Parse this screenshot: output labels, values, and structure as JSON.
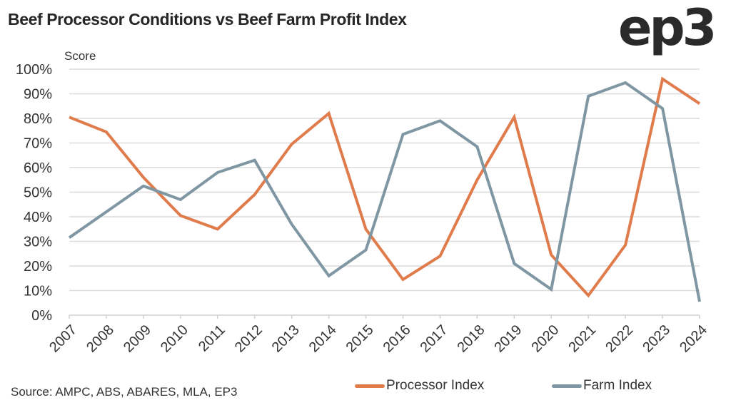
{
  "header": {
    "title": "Beef Processor Conditions vs Beef Farm Profit Index",
    "logo_text": "ep3"
  },
  "footer": {
    "source": "Source: AMPC, ABS, ABARES, MLA, EP3"
  },
  "legend": {
    "items": [
      {
        "label": "Processor Index",
        "color": "#e07b4c"
      },
      {
        "label": "Farm Index",
        "color": "#7f96a3"
      }
    ]
  },
  "chart_data": {
    "type": "line",
    "title": "Beef Processor Conditions vs Beef Farm Profit Index",
    "xlabel": "",
    "ylabel": "Score",
    "ylim": [
      0,
      100
    ],
    "yticks": [
      "0%",
      "10%",
      "20%",
      "30%",
      "40%",
      "50%",
      "60%",
      "70%",
      "80%",
      "90%",
      "100%"
    ],
    "grid": true,
    "legend_position": "bottom-right",
    "categories": [
      "2007",
      "2008",
      "2009",
      "2010",
      "2011",
      "2012",
      "2013",
      "2014",
      "2015",
      "2016",
      "2017",
      "2018",
      "2019",
      "2020",
      "2021",
      "2022",
      "2023",
      "2024"
    ],
    "series": [
      {
        "name": "Processor Index",
        "color": "#e07b4c",
        "values": [
          80.5,
          74.5,
          56,
          40.5,
          35,
          49,
          69.5,
          82,
          35,
          14.5,
          24,
          55,
          80.5,
          24.5,
          8,
          28.5,
          96,
          86
        ]
      },
      {
        "name": "Farm Index",
        "color": "#7f96a3",
        "values": [
          31.5,
          42,
          52.5,
          47,
          58,
          63,
          37,
          16,
          26.5,
          73.5,
          79,
          68.5,
          21,
          10.5,
          89,
          94.5,
          84,
          5.5
        ]
      }
    ],
    "source": "Source: AMPC, ABS, ABARES, MLA, EP3"
  }
}
